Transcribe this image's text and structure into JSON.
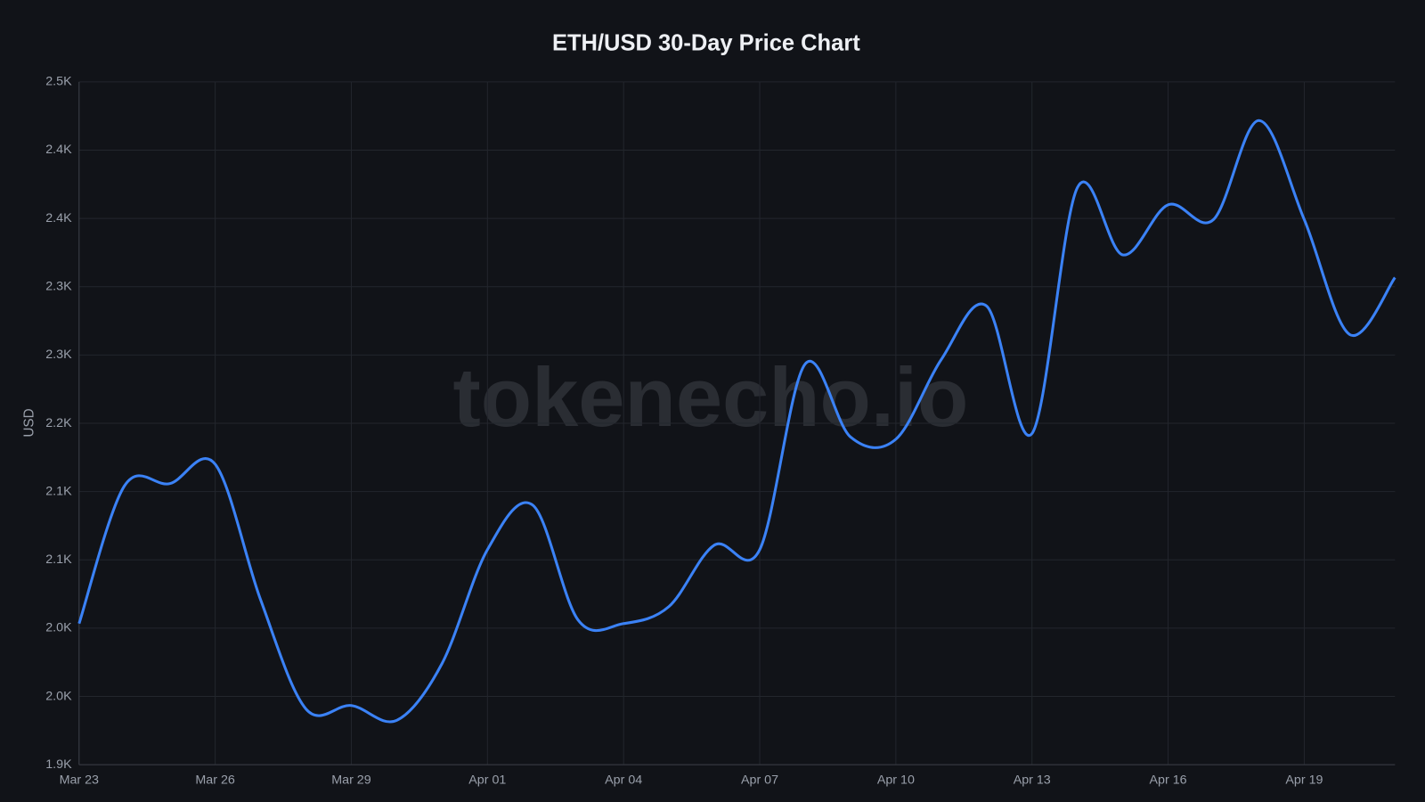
{
  "chart_data": {
    "type": "line",
    "title": "ETH/USD 30-Day Price Chart",
    "y_label": "USD",
    "watermark": "tokenecho.io",
    "categories": [
      "Mar 23",
      null,
      null,
      "Mar 26",
      null,
      null,
      "Mar 29",
      null,
      null,
      "Apr 01",
      null,
      null,
      "Apr 04",
      null,
      null,
      "Apr 07",
      null,
      null,
      "Apr 10",
      null,
      null,
      "Apr 13",
      null,
      null,
      "Apr 16",
      null,
      null,
      "Apr 19",
      null,
      null
    ],
    "series": [
      {
        "name": "ETH/USD",
        "color": "#3b82f6",
        "values": [
          2024,
          2145,
          2147,
          2164,
          2045,
          1949,
          1952,
          1939,
          1989,
          2089,
          2128,
          2027,
          2024,
          2039,
          2093,
          2089,
          2252,
          2188,
          2186,
          2256,
          2303,
          2191,
          2407,
          2348,
          2392,
          2379,
          2466,
          2379,
          2278,
          2328
        ]
      }
    ],
    "ylim": [
      1900,
      2500
    ],
    "yticks": [
      {
        "value": 1900,
        "label": "1.9K"
      },
      {
        "value": 1960,
        "label": "2.0K"
      },
      {
        "value": 2020,
        "label": "2.0K"
      },
      {
        "value": 2080,
        "label": "2.1K"
      },
      {
        "value": 2140,
        "label": "2.1K"
      },
      {
        "value": 2200,
        "label": "2.2K"
      },
      {
        "value": 2260,
        "label": "2.3K"
      },
      {
        "value": 2320,
        "label": "2.3K"
      },
      {
        "value": 2380,
        "label": "2.4K"
      },
      {
        "value": 2440,
        "label": "2.4K"
      },
      {
        "value": 2500,
        "label": "2.5K"
      }
    ],
    "grid": true
  }
}
